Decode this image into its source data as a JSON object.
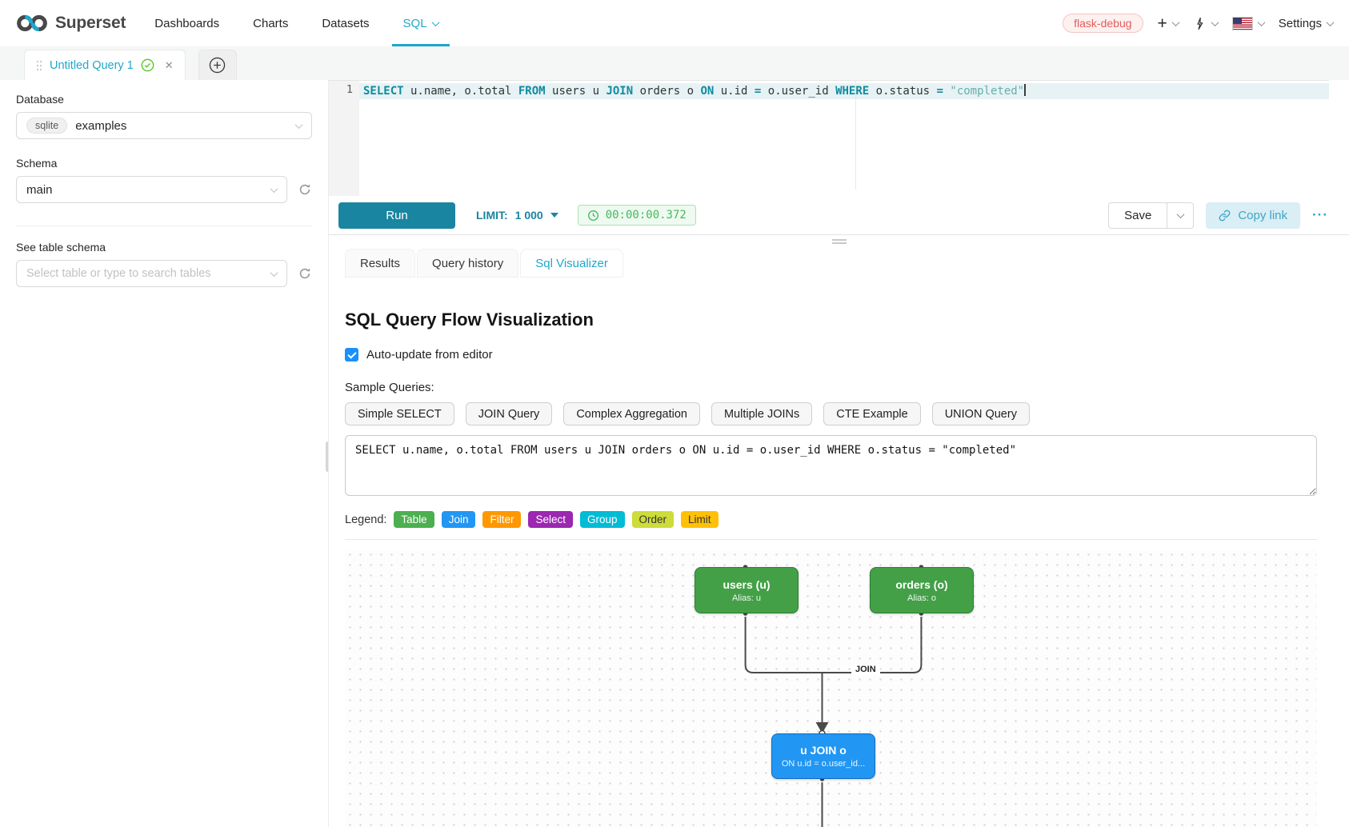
{
  "theme": {
    "accent": "#20a7c9",
    "accent-dark": "#1a85a0",
    "keyword": "#0e8ba0",
    "identifier": "#2d3436",
    "string": "#63b1aa",
    "timer-green": "#44b95f",
    "timer-bg": "#eefaf0",
    "timer-border": "#abe0b9",
    "badge-red": "#e25c5c",
    "checkbox-blue": "#1890ff",
    "node-green": "#43a047",
    "node-green-border": "#2e7d32",
    "node-blue": "#2196f3",
    "node-blue-border": "#1769c0"
  },
  "navbar": {
    "brand": "Superset",
    "items": [
      {
        "label": "Dashboards"
      },
      {
        "label": "Charts"
      },
      {
        "label": "Datasets"
      },
      {
        "label": "SQL"
      }
    ],
    "env_badge": "flask-debug",
    "settings_label": "Settings"
  },
  "tabbar": {
    "active_tab_title": "Untitled Query 1"
  },
  "sidebar": {
    "database_label": "Database",
    "database_engine": "sqlite",
    "database_value": "examples",
    "schema_label": "Schema",
    "schema_value": "main",
    "table_label": "See table schema",
    "table_placeholder": "Select table or type to search tables"
  },
  "editor": {
    "line_number": "1",
    "tokens": [
      {
        "text": "SELECT",
        "type": "kw"
      },
      {
        "text": " u.name, o.total ",
        "type": "id"
      },
      {
        "text": "FROM",
        "type": "kw"
      },
      {
        "text": " users u ",
        "type": "id"
      },
      {
        "text": "JOIN",
        "type": "kw"
      },
      {
        "text": " orders o ",
        "type": "id"
      },
      {
        "text": "ON",
        "type": "kw"
      },
      {
        "text": " u.id ",
        "type": "id"
      },
      {
        "text": "=",
        "type": "op"
      },
      {
        "text": " o.user_id ",
        "type": "id"
      },
      {
        "text": "WHERE",
        "type": "kw"
      },
      {
        "text": " o.status ",
        "type": "id"
      },
      {
        "text": "=",
        "type": "op"
      },
      {
        "text": " ",
        "type": "id"
      },
      {
        "text": "\"completed\"",
        "type": "str"
      }
    ]
  },
  "toolbar": {
    "run_label": "Run",
    "limit_label": "LIMIT:",
    "limit_value": "1 000",
    "elapsed_time": "00:00:00.372",
    "save_label": "Save",
    "copy_link_label": "Copy link",
    "more_label": "···"
  },
  "south_tabs": {
    "tabs": [
      {
        "label": "Results"
      },
      {
        "label": "Query history"
      },
      {
        "label": "Sql Visualizer"
      }
    ]
  },
  "visualizer": {
    "title": "SQL Query Flow Visualization",
    "auto_update_label": "Auto-update from editor",
    "auto_update_checked": true,
    "sample_queries_label": "Sample Queries:",
    "sample_buttons": [
      {
        "label": "Simple SELECT"
      },
      {
        "label": "JOIN Query"
      },
      {
        "label": "Complex Aggregation"
      },
      {
        "label": "Multiple JOINs"
      },
      {
        "label": "CTE Example"
      },
      {
        "label": "UNION Query"
      }
    ],
    "query_text": "SELECT u.name, o.total FROM users u JOIN orders o ON u.id = o.user_id WHERE o.status = \"completed\"",
    "legend": {
      "label": "Legend:",
      "items": [
        {
          "label": "Table",
          "color": "#4caf50",
          "text_color": "#ffffff"
        },
        {
          "label": "Join",
          "color": "#2196f3",
          "text_color": "#ffffff"
        },
        {
          "label": "Filter",
          "color": "#ff9800",
          "text_color": "#ffffff"
        },
        {
          "label": "Select",
          "color": "#9c27b0",
          "text_color": "#ffffff"
        },
        {
          "label": "Group",
          "color": "#00bcd4",
          "text_color": "#ffffff"
        },
        {
          "label": "Order",
          "color": "#cddc39",
          "text_color": "#333333"
        },
        {
          "label": "Limit",
          "color": "#ffc107",
          "text_color": "#333333"
        }
      ]
    },
    "flow": {
      "nodes": [
        {
          "title": "users (u)",
          "subtitle": "Alias: u",
          "type": "table"
        },
        {
          "title": "orders (o)",
          "subtitle": "Alias: o",
          "type": "table"
        },
        {
          "title": "u JOIN o",
          "subtitle": "ON u.id = o.user_id...",
          "type": "join"
        }
      ],
      "edge_label": "JOIN"
    }
  }
}
